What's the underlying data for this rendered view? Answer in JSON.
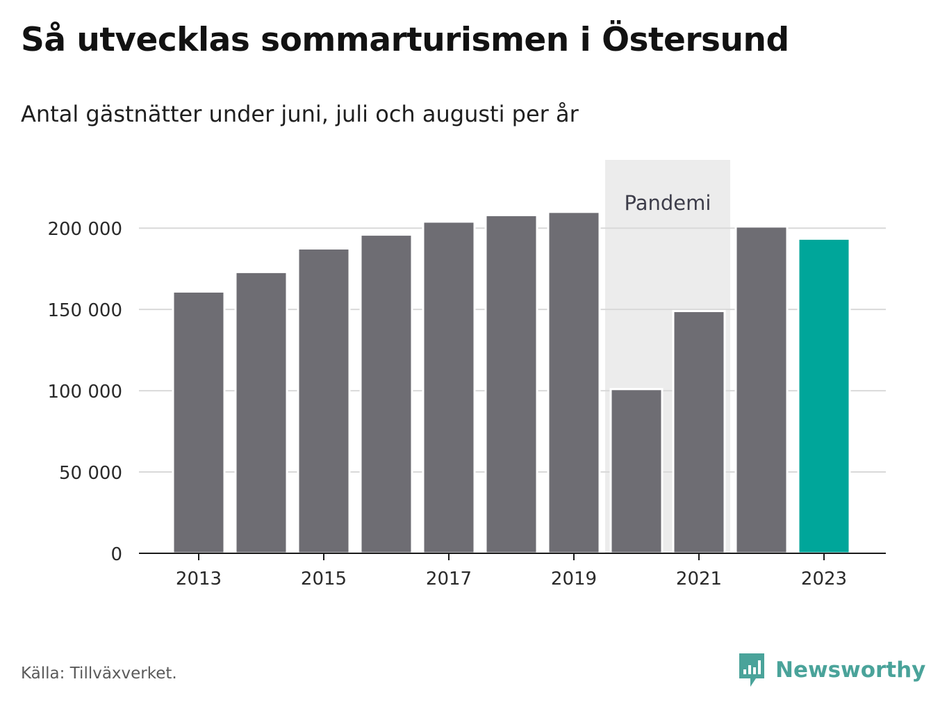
{
  "title": "Så utvecklas sommarturismen i Östersund",
  "subtitle": "Antal gästnätter under juni, juli och augusti per år",
  "source": "Källa: Tillväxverket.",
  "brand": {
    "name": "Newsworthy",
    "logo_icon": "newsworthy-logo-icon",
    "color": "#4aa39a"
  },
  "colors": {
    "bar": "#6e6d73",
    "highlight": "#00a69a",
    "pandemic_band": "#ececec",
    "grid": "#d9d9d9",
    "axis": "#1a1a1a"
  },
  "chart_data": {
    "type": "bar",
    "categories": [
      "2013",
      "2014",
      "2015",
      "2016",
      "2017",
      "2018",
      "2019",
      "2020",
      "2021",
      "2022",
      "2023"
    ],
    "values": [
      161000,
      173000,
      187500,
      196000,
      204000,
      208000,
      210000,
      101000,
      149000,
      201000,
      193500
    ],
    "highlight_index": 10,
    "xtick_labels": [
      "2013",
      "2015",
      "2017",
      "2019",
      "2021",
      "2023"
    ],
    "yticks": [
      0,
      50000,
      100000,
      150000,
      200000
    ],
    "ytick_labels": [
      "0",
      "50 000",
      "100 000",
      "150 000",
      "200 000"
    ],
    "ylim": [
      0,
      242000
    ],
    "grid": true,
    "legend": "none",
    "xlabel": "",
    "ylabel": "",
    "annotation": {
      "label": "Pandemi",
      "from": "2020",
      "to": "2021"
    }
  }
}
